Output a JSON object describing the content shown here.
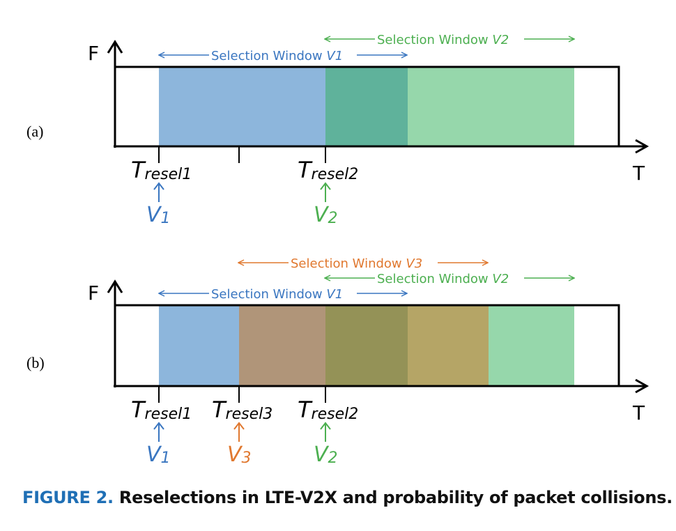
{
  "colors": {
    "blue": "#3a76c0",
    "green": "#4caf50",
    "orange": "#e0782f",
    "fill_blue": "#8db6dc",
    "fill_teal": "#5fb29b",
    "fill_lightgreen": "#96d7ab",
    "fill_brown": "#b09579",
    "fill_olive": "#949257",
    "fill_tan": "#b5a566",
    "caption_fig": "#1f6fb5"
  },
  "panels": [
    {
      "label": "(a)",
      "f_axis": "F",
      "t_axis": "T",
      "windows": [
        {
          "text": "Selection Window ",
          "sub": "V1",
          "color": "blue"
        },
        {
          "text": "Selection Window ",
          "sub": "V2",
          "color": "green"
        }
      ],
      "ticks": [
        {
          "T": "T",
          "sub": "resel1",
          "V": "V",
          "Vsub": "1",
          "color": "blue"
        },
        {
          "T": "T",
          "sub": "resel2",
          "V": "V",
          "Vsub": "2",
          "color": "green"
        }
      ]
    },
    {
      "label": "(b)",
      "f_axis": "F",
      "t_axis": "T",
      "windows": [
        {
          "text": "Selection Window ",
          "sub": "V3",
          "color": "orange"
        },
        {
          "text": "Selection Window ",
          "sub": "V2",
          "color": "green"
        },
        {
          "text": "Selection Window ",
          "sub": "V1",
          "color": "blue"
        }
      ],
      "ticks": [
        {
          "T": "T",
          "sub": "resel1",
          "V": "V",
          "Vsub": "1",
          "color": "blue"
        },
        {
          "T": "T",
          "sub": "resel3",
          "V": "V",
          "Vsub": "3",
          "color": "orange"
        },
        {
          "T": "T",
          "sub": "resel2",
          "V": "V",
          "Vsub": "2",
          "color": "green"
        }
      ]
    }
  ],
  "caption": {
    "figure": "FIGURE 2.",
    "text": "Reselections in LTE-V2X and probability of packet collisions."
  }
}
